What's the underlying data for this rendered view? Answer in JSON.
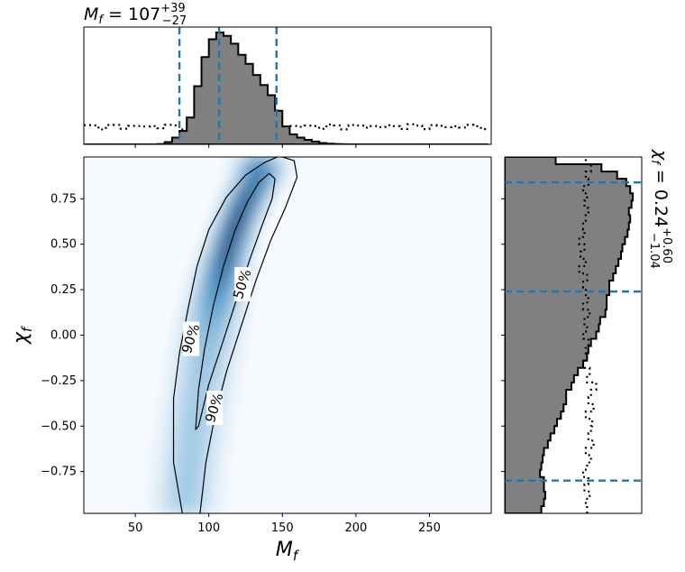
{
  "chart_data": [
    {
      "type": "histogram",
      "panel": "top-marginal",
      "variable": "M_f",
      "title": {
        "base": "M",
        "sub": "f",
        "eq": " = 107",
        "sup": "+39",
        "inf": "−27"
      },
      "xlim": [
        15,
        292
      ],
      "bin_edges": [
        15,
        20,
        25,
        30,
        35,
        40,
        45,
        50,
        55,
        60,
        65,
        70,
        75,
        80,
        85,
        90,
        95,
        100,
        105,
        110,
        115,
        120,
        125,
        130,
        135,
        140,
        145,
        150,
        155,
        160,
        165,
        170,
        175,
        180,
        185,
        190,
        195,
        200,
        205,
        210,
        215,
        220,
        225,
        230,
        235,
        240,
        245,
        250,
        255,
        260,
        265,
        270,
        275,
        280,
        285,
        290
      ],
      "posterior": [
        0,
        0,
        0,
        0,
        0,
        0,
        0,
        0,
        0,
        0,
        0.003,
        0.02,
        0.06,
        0.12,
        0.24,
        0.52,
        0.78,
        0.94,
        1.0,
        0.97,
        0.9,
        0.8,
        0.72,
        0.62,
        0.53,
        0.44,
        0.3,
        0.16,
        0.09,
        0.06,
        0.04,
        0.025,
        0.012,
        0.006,
        0.003,
        0.001,
        0,
        0,
        0,
        0,
        0,
        0,
        0,
        0,
        0,
        0,
        0,
        0,
        0,
        0,
        0,
        0,
        0,
        0,
        0
      ],
      "prior_level": 0.16,
      "credible_lines": [
        80,
        107,
        146
      ],
      "colors": {
        "posterior_fill": "#808080",
        "edge": "#000000",
        "credible": "#1f77b4"
      }
    },
    {
      "type": "heatmap",
      "panel": "joint",
      "xlabel": {
        "base": "M",
        "sub": "f"
      },
      "ylabel": {
        "base": "χ",
        "sub": "f"
      },
      "xlim": [
        15,
        292
      ],
      "ylim": [
        -0.98,
        0.98
      ],
      "xticks": [
        50,
        100,
        150,
        200,
        250
      ],
      "yticks": [
        0.75,
        0.5,
        0.25,
        0.0,
        -0.25,
        -0.5,
        -0.75
      ],
      "ytick_labels": [
        "0.75",
        "0.50",
        "0.25",
        "0.00",
        "−0.25",
        "−0.50",
        "−0.75"
      ],
      "ridge": [
        [
          84,
          -0.98
        ],
        [
          86,
          -0.75
        ],
        [
          90,
          -0.5
        ],
        [
          95,
          -0.25
        ],
        [
          100,
          0.0
        ],
        [
          106,
          0.25
        ],
        [
          112,
          0.45
        ],
        [
          118,
          0.6
        ],
        [
          124,
          0.72
        ],
        [
          130,
          0.82
        ],
        [
          135,
          0.9
        ]
      ],
      "contours": [
        {
          "label": "90%",
          "points": [
            [
              82,
              -0.98
            ],
            [
              76,
              -0.7
            ],
            [
              76,
              -0.35
            ],
            [
              80,
              -0.1
            ],
            [
              86,
              0.15
            ],
            [
              92,
              0.38
            ],
            [
              100,
              0.58
            ],
            [
              112,
              0.76
            ],
            [
              125,
              0.88
            ],
            [
              138,
              0.95
            ],
            [
              148,
              0.985
            ],
            [
              158,
              0.96
            ],
            [
              160,
              0.87
            ],
            [
              152,
              0.7
            ],
            [
              142,
              0.52
            ],
            [
              132,
              0.3
            ],
            [
              122,
              0.05
            ],
            [
              112,
              -0.2
            ],
            [
              104,
              -0.45
            ],
            [
              98,
              -0.7
            ],
            [
              94,
              -0.98
            ]
          ],
          "label_pos": [
            [
              88,
              -0.02
            ],
            [
              104,
              -0.4
            ]
          ]
        },
        {
          "label": "50%",
          "points": [
            [
              91,
              -0.52
            ],
            [
              93,
              -0.3
            ],
            [
              97,
              -0.08
            ],
            [
              103,
              0.16
            ],
            [
              110,
              0.38
            ],
            [
              118,
              0.58
            ],
            [
              126,
              0.73
            ],
            [
              134,
              0.84
            ],
            [
              141,
              0.89
            ],
            [
              145,
              0.86
            ],
            [
              143,
              0.75
            ],
            [
              136,
              0.6
            ],
            [
              128,
              0.42
            ],
            [
              119,
              0.2
            ],
            [
              109,
              -0.05
            ],
            [
              100,
              -0.27
            ],
            [
              93,
              -0.5
            ],
            [
              91,
              -0.52
            ]
          ],
          "label_pos": [
            [
              123,
              0.28
            ]
          ]
        }
      ],
      "colors": {
        "low": "#f7fbff",
        "high": "#08306b",
        "contour": "#000000"
      }
    },
    {
      "type": "histogram",
      "panel": "right-marginal",
      "orientation": "horizontal",
      "variable": "chi_f",
      "title": {
        "base": "χ",
        "sub": "f",
        "eq": " = 0.24",
        "sup": "+0.60",
        "inf": "−1.04"
      },
      "ylim": [
        -0.98,
        0.98
      ],
      "bin_edges": [
        -0.98,
        -0.94,
        -0.9,
        -0.86,
        -0.82,
        -0.78,
        -0.74,
        -0.7,
        -0.66,
        -0.62,
        -0.58,
        -0.54,
        -0.5,
        -0.46,
        -0.42,
        -0.38,
        -0.34,
        -0.3,
        -0.26,
        -0.22,
        -0.18,
        -0.14,
        -0.1,
        -0.06,
        -0.02,
        0.02,
        0.06,
        0.1,
        0.14,
        0.18,
        0.22,
        0.26,
        0.3,
        0.34,
        0.38,
        0.42,
        0.46,
        0.5,
        0.54,
        0.58,
        0.62,
        0.66,
        0.7,
        0.74,
        0.78,
        0.82,
        0.86,
        0.9,
        0.94,
        0.98
      ],
      "posterior": [
        0.28,
        0.3,
        0.31,
        0.3,
        0.3,
        0.27,
        0.28,
        0.29,
        0.3,
        0.33,
        0.35,
        0.38,
        0.4,
        0.43,
        0.45,
        0.47,
        0.47,
        0.51,
        0.53,
        0.56,
        0.6,
        0.63,
        0.64,
        0.66,
        0.7,
        0.72,
        0.73,
        0.77,
        0.78,
        0.78,
        0.8,
        0.8,
        0.83,
        0.85,
        0.87,
        0.89,
        0.9,
        0.92,
        0.94,
        0.95,
        0.96,
        0.95,
        0.97,
        0.98,
        0.96,
        0.93,
        0.86,
        0.74,
        0.39
      ],
      "prior": [
        0.63,
        0.62,
        0.65,
        0.61,
        0.64,
        0.6,
        0.63,
        0.66,
        0.62,
        0.68,
        0.64,
        0.66,
        0.67,
        0.62,
        0.68,
        0.64,
        0.66,
        0.7,
        0.63,
        0.65,
        0.6,
        0.63,
        0.62,
        0.64,
        0.6,
        0.63,
        0.61,
        0.65,
        0.6,
        0.64,
        0.62,
        0.6,
        0.63,
        0.57,
        0.62,
        0.58,
        0.61,
        0.57,
        0.61,
        0.6,
        0.62,
        0.64,
        0.61,
        0.63,
        0.6,
        0.64,
        0.62,
        0.66,
        0.62
      ],
      "credible_lines": [
        -0.8,
        0.24,
        0.84
      ],
      "colors": {
        "posterior_fill": "#808080",
        "edge": "#000000",
        "credible": "#1f77b4"
      }
    }
  ]
}
